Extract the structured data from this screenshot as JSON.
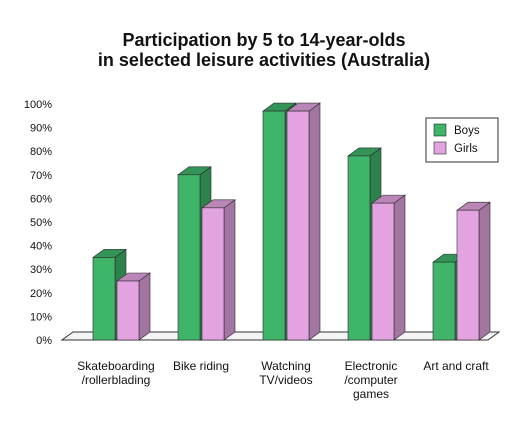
{
  "chart_data": {
    "type": "bar",
    "title": [
      "Participation by 5 to 14-year-olds",
      "in selected leisure activities (Australia)"
    ],
    "categories": [
      [
        "Skateboarding",
        "/rollerblading"
      ],
      [
        "Bike riding"
      ],
      [
        "Watching",
        "TV/videos"
      ],
      [
        "Electronic",
        "/computer",
        "games"
      ],
      [
        "Art and craft"
      ]
    ],
    "series": [
      {
        "name": "Boys",
        "values": [
          35,
          70,
          97,
          78,
          33
        ],
        "color": "#3fb56a"
      },
      {
        "name": "Girls",
        "values": [
          25,
          56,
          97,
          58,
          55
        ],
        "color": "#e3a3e0"
      }
    ],
    "yticks": [
      "0%",
      "10%",
      "20%",
      "30%",
      "40%",
      "50%",
      "60%",
      "70%",
      "80%",
      "90%",
      "100%"
    ],
    "ylim": [
      0,
      100
    ],
    "xlabel": "",
    "ylabel": "",
    "legend_position": "top-right",
    "style": "3d"
  }
}
